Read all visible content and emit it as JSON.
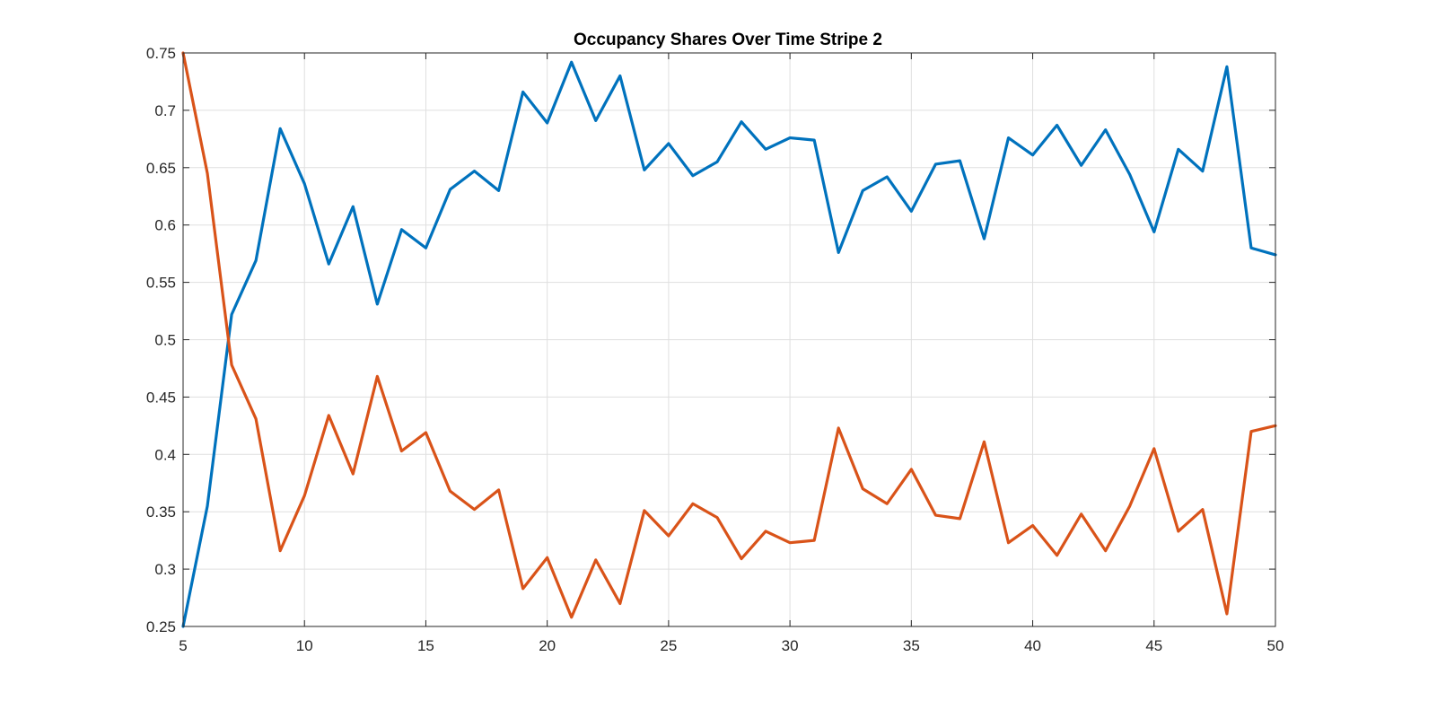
{
  "chart_data": {
    "type": "line",
    "title": "Occupancy Shares Over Time Stripe 2",
    "xlabel": "",
    "ylabel": "",
    "xlim": [
      5,
      50
    ],
    "ylim": [
      0.25,
      0.75
    ],
    "xticks": [
      5,
      10,
      15,
      20,
      25,
      30,
      35,
      40,
      45,
      50
    ],
    "yticks": [
      0.25,
      0.3,
      0.35,
      0.4,
      0.45,
      0.5,
      0.55,
      0.6,
      0.65,
      0.7,
      0.75
    ],
    "grid": true,
    "legend": "none",
    "x": [
      5,
      6,
      7,
      8,
      9,
      10,
      11,
      12,
      13,
      14,
      15,
      16,
      17,
      18,
      19,
      20,
      21,
      22,
      23,
      24,
      25,
      26,
      27,
      28,
      29,
      30,
      31,
      32,
      33,
      34,
      35,
      36,
      37,
      38,
      39,
      40,
      41,
      42,
      43,
      44,
      45,
      46,
      47,
      48,
      49,
      50
    ],
    "series": [
      {
        "color": "#0072bd",
        "values": [
          0.25,
          0.355,
          0.522,
          0.569,
          0.684,
          0.636,
          0.566,
          0.616,
          0.531,
          0.596,
          0.58,
          0.631,
          0.647,
          0.63,
          0.716,
          0.689,
          0.742,
          0.691,
          0.73,
          0.648,
          0.671,
          0.643,
          0.655,
          0.69,
          0.666,
          0.676,
          0.674,
          0.576,
          0.63,
          0.642,
          0.612,
          0.653,
          0.656,
          0.588,
          0.676,
          0.661,
          0.687,
          0.652,
          0.683,
          0.644,
          0.594,
          0.666,
          0.647,
          0.738,
          0.58,
          0.574
        ]
      },
      {
        "color": "#d95319",
        "values": [
          0.75,
          0.645,
          0.478,
          0.431,
          0.316,
          0.364,
          0.434,
          0.383,
          0.468,
          0.403,
          0.419,
          0.368,
          0.352,
          0.369,
          0.283,
          0.31,
          0.258,
          0.308,
          0.27,
          0.351,
          0.329,
          0.357,
          0.345,
          0.309,
          0.333,
          0.323,
          0.325,
          0.423,
          0.37,
          0.357,
          0.387,
          0.347,
          0.344,
          0.411,
          0.323,
          0.338,
          0.312,
          0.348,
          0.316,
          0.355,
          0.405,
          0.333,
          0.352,
          0.261,
          0.42,
          0.425
        ]
      }
    ]
  }
}
